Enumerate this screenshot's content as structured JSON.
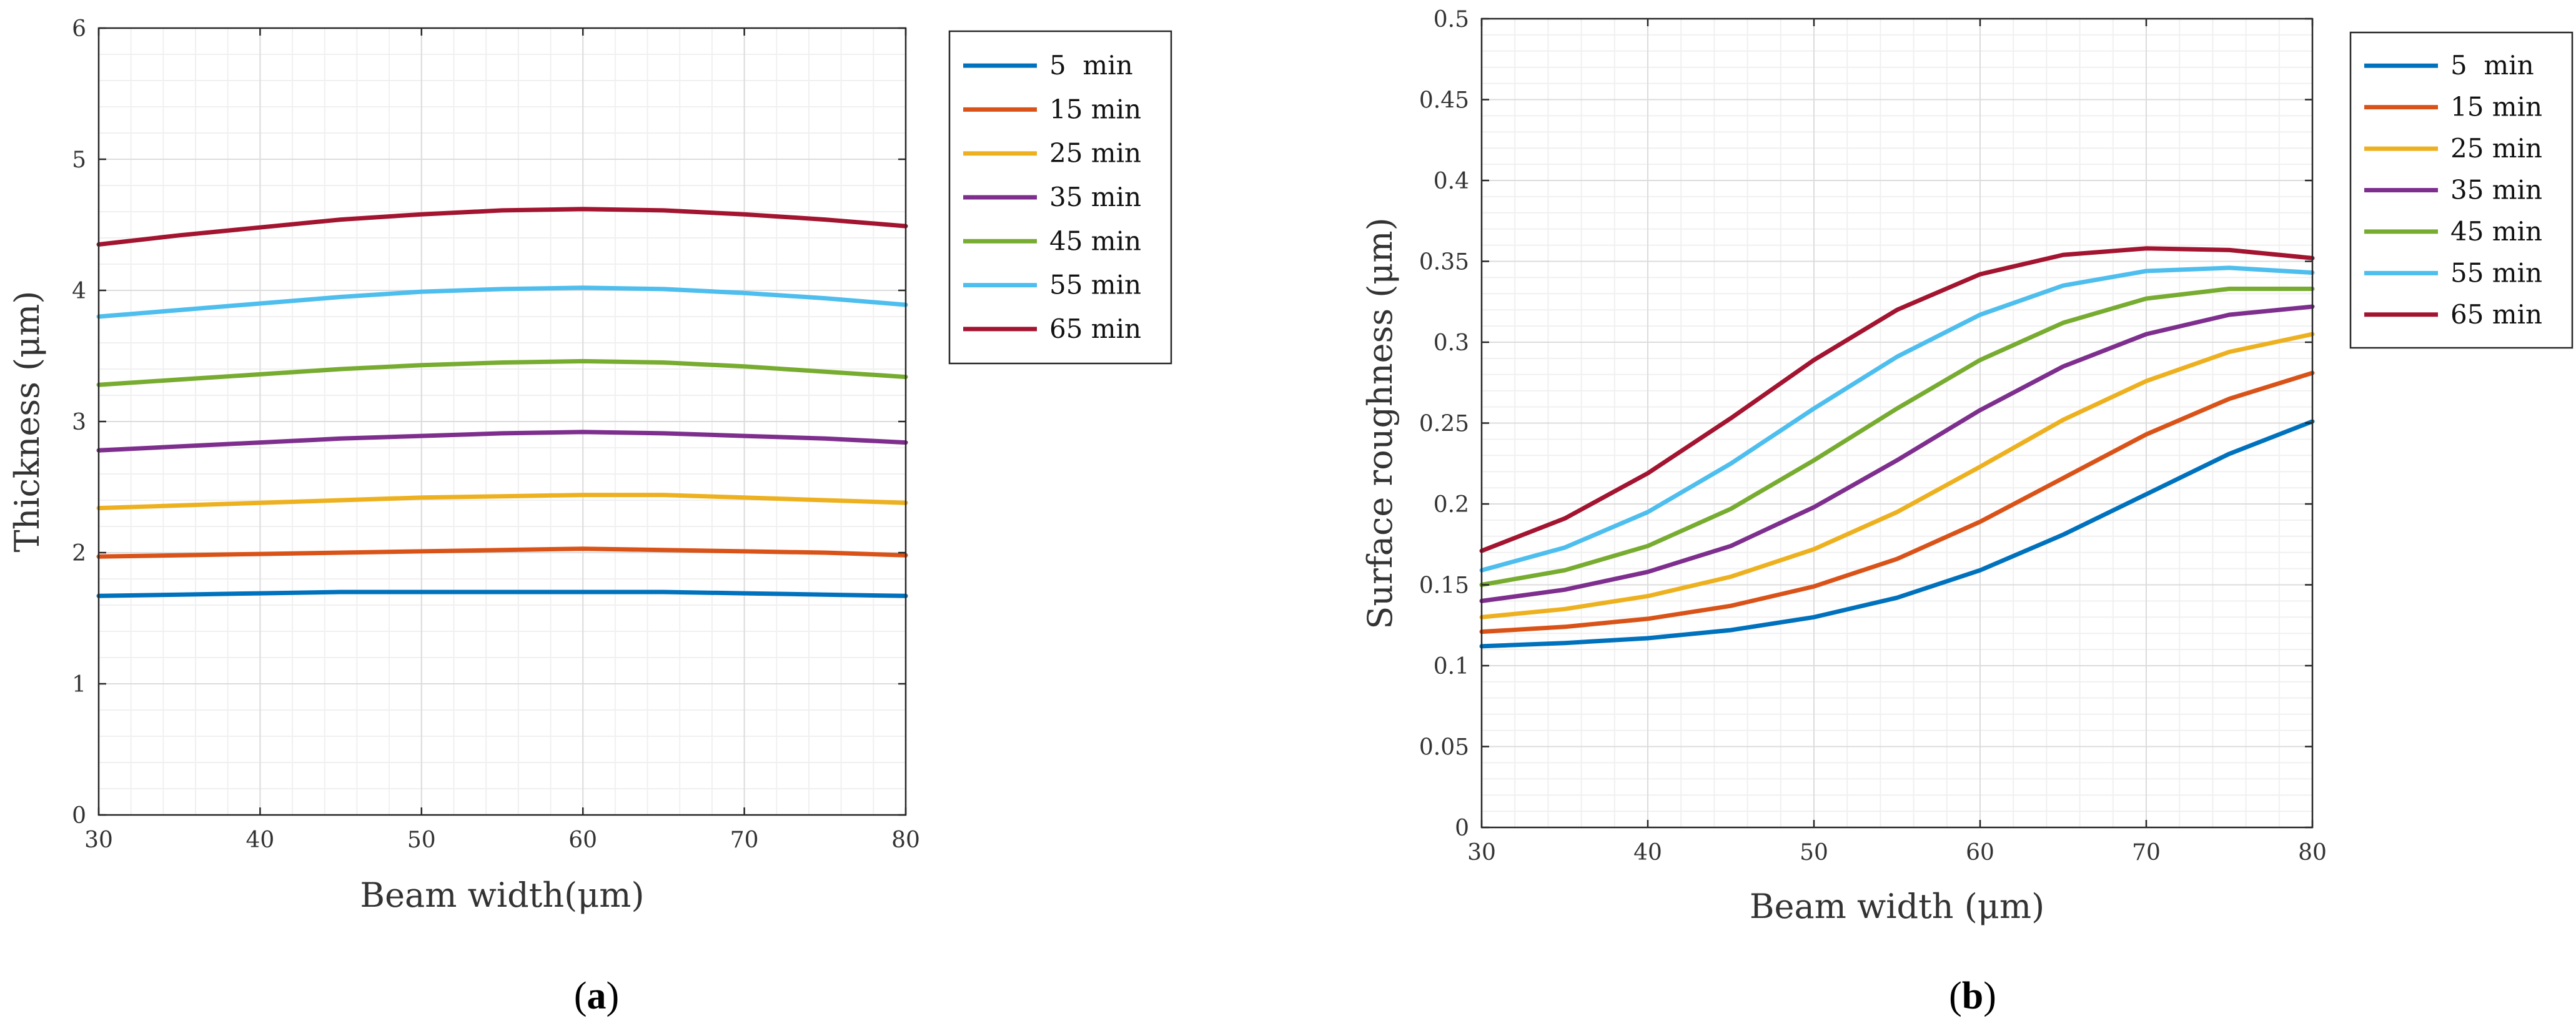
{
  "chart_data": [
    {
      "type": "line",
      "caption": {
        "open": "(",
        "letter": "a",
        "close": ")"
      },
      "xlabel": "Beam width(μm)",
      "ylabel": "Thickness (μm)",
      "xlim": [
        30,
        80
      ],
      "ylim": [
        0,
        6
      ],
      "xticks": [
        30,
        40,
        50,
        60,
        70,
        80
      ],
      "yticks": [
        0,
        1,
        2,
        3,
        4,
        5,
        6
      ],
      "grid": true,
      "legend_position": "outside-right",
      "x": [
        30,
        35,
        40,
        45,
        50,
        55,
        60,
        65,
        70,
        75,
        80
      ],
      "series": [
        {
          "name": "5  min",
          "color": "#0072BD",
          "values": [
            1.67,
            1.68,
            1.69,
            1.7,
            1.7,
            1.7,
            1.7,
            1.7,
            1.69,
            1.68,
            1.67
          ]
        },
        {
          "name": "15 min",
          "color": "#D95319",
          "values": [
            1.97,
            1.98,
            1.99,
            2.0,
            2.01,
            2.02,
            2.03,
            2.02,
            2.01,
            2.0,
            1.98
          ]
        },
        {
          "name": "25 min",
          "color": "#EDB120",
          "values": [
            2.34,
            2.36,
            2.38,
            2.4,
            2.42,
            2.43,
            2.44,
            2.44,
            2.42,
            2.4,
            2.38
          ]
        },
        {
          "name": "35 min",
          "color": "#7E2F8E",
          "values": [
            2.78,
            2.81,
            2.84,
            2.87,
            2.89,
            2.91,
            2.92,
            2.91,
            2.89,
            2.87,
            2.84
          ]
        },
        {
          "name": "45 min",
          "color": "#77AC30",
          "values": [
            3.28,
            3.32,
            3.36,
            3.4,
            3.43,
            3.45,
            3.46,
            3.45,
            3.42,
            3.38,
            3.34
          ]
        },
        {
          "name": "55 min",
          "color": "#4DBEEE",
          "values": [
            3.8,
            3.85,
            3.9,
            3.95,
            3.99,
            4.01,
            4.02,
            4.01,
            3.98,
            3.94,
            3.89
          ]
        },
        {
          "name": "65 min",
          "color": "#A2142F",
          "values": [
            4.35,
            4.42,
            4.48,
            4.54,
            4.58,
            4.61,
            4.62,
            4.61,
            4.58,
            4.54,
            4.49
          ]
        }
      ]
    },
    {
      "type": "line",
      "caption": {
        "open": "(",
        "letter": "b",
        "close": ")"
      },
      "xlabel": "Beam width (μm)",
      "ylabel": "Surface roughness (μm)",
      "xlim": [
        30,
        80
      ],
      "ylim": [
        0,
        0.5
      ],
      "xticks": [
        30,
        40,
        50,
        60,
        70,
        80
      ],
      "yticks": [
        0,
        0.05,
        0.1,
        0.15,
        0.2,
        0.25,
        0.3,
        0.35,
        0.4,
        0.45,
        0.5
      ],
      "grid": true,
      "legend_position": "outside-right",
      "x": [
        30,
        35,
        40,
        45,
        50,
        55,
        60,
        65,
        70,
        75,
        80
      ],
      "series": [
        {
          "name": "5  min",
          "color": "#0072BD",
          "values": [
            0.112,
            0.114,
            0.117,
            0.122,
            0.13,
            0.142,
            0.159,
            0.181,
            0.206,
            0.231,
            0.251
          ]
        },
        {
          "name": "15 min",
          "color": "#D95319",
          "values": [
            0.121,
            0.124,
            0.129,
            0.137,
            0.149,
            0.166,
            0.189,
            0.216,
            0.243,
            0.265,
            0.281
          ]
        },
        {
          "name": "25 min",
          "color": "#EDB120",
          "values": [
            0.13,
            0.135,
            0.143,
            0.155,
            0.172,
            0.195,
            0.223,
            0.252,
            0.276,
            0.294,
            0.305
          ]
        },
        {
          "name": "35 min",
          "color": "#7E2F8E",
          "values": [
            0.14,
            0.147,
            0.158,
            0.174,
            0.198,
            0.227,
            0.258,
            0.285,
            0.305,
            0.317,
            0.322
          ]
        },
        {
          "name": "45 min",
          "color": "#77AC30",
          "values": [
            0.15,
            0.159,
            0.174,
            0.197,
            0.227,
            0.259,
            0.289,
            0.312,
            0.327,
            0.333,
            0.333
          ]
        },
        {
          "name": "55 min",
          "color": "#4DBEEE",
          "values": [
            0.159,
            0.173,
            0.195,
            0.225,
            0.259,
            0.291,
            0.317,
            0.335,
            0.344,
            0.346,
            0.343
          ]
        },
        {
          "name": "65 min",
          "color": "#A2142F",
          "values": [
            0.171,
            0.191,
            0.219,
            0.253,
            0.289,
            0.32,
            0.342,
            0.354,
            0.358,
            0.357,
            0.352
          ]
        }
      ]
    }
  ]
}
